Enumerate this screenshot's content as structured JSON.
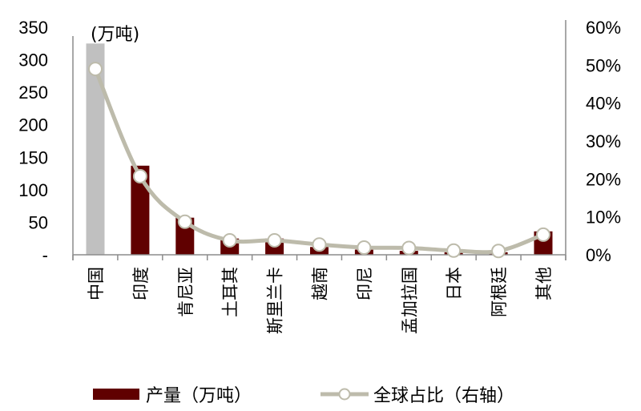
{
  "chart_data": {
    "type": "bar+line",
    "title": "",
    "unit_annotation": "(万吨)",
    "categories": [
      "中国",
      "印度",
      "肯尼亚",
      "土耳其",
      "斯里兰卡",
      "越南",
      "印尼",
      "孟加拉国",
      "日本",
      "阿根廷",
      "其他"
    ],
    "series": [
      {
        "name": "产量（万吨）",
        "type": "bar",
        "axis": "left",
        "values": [
          325,
          137,
          57,
          25,
          25,
          12,
          8,
          6,
          4,
          4,
          36
        ],
        "colors": [
          "#C0C0C0",
          "#600000",
          "#600000",
          "#600000",
          "#600000",
          "#600000",
          "#600000",
          "#600000",
          "#600000",
          "#600000",
          "#600000"
        ]
      },
      {
        "name": "全球占比（右轴）",
        "type": "line",
        "axis": "right",
        "values": [
          49.0,
          20.7,
          8.7,
          3.8,
          3.8,
          2.7,
          1.9,
          1.8,
          1.1,
          1.0,
          5.3
        ],
        "color": "#BDBBAB",
        "marker": "circle-white"
      }
    ],
    "left_axis": {
      "ylim": [
        0,
        350
      ],
      "ticks": [
        0,
        50,
        100,
        150,
        200,
        250,
        300,
        350
      ],
      "tick_labels": [
        "-",
        "50",
        "100",
        "150",
        "200",
        "250",
        "300",
        "350"
      ]
    },
    "right_axis": {
      "ylim": [
        0,
        60
      ],
      "ticks": [
        0,
        10,
        20,
        30,
        40,
        50,
        60
      ],
      "tick_labels": [
        "0%",
        "10%",
        "20%",
        "30%",
        "40%",
        "50%",
        "60%"
      ]
    },
    "xlabel": "",
    "ylabel": "",
    "grid": false,
    "legend_position": "bottom"
  },
  "legend": {
    "bar_label": "产量（万吨）",
    "line_label": "全球占比（右轴）"
  },
  "colors": {
    "bar": "#600000",
    "highlight_bar": "#C0C0C0",
    "line": "#BDBBAB",
    "axis": "#8C8C8C"
  }
}
